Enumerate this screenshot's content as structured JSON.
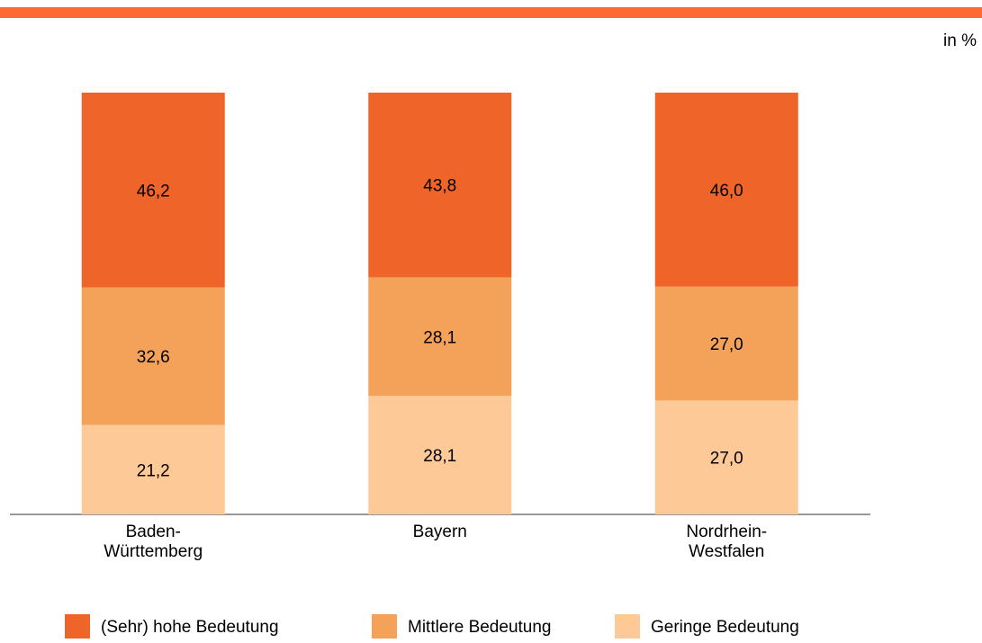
{
  "chart_data": {
    "type": "stacked_bar",
    "unit": "in %",
    "categories": [
      "Baden-\nWürttemberg",
      "Bayern",
      "Nordrhein-\nWestfalen"
    ],
    "series": [
      {
        "name": "(Sehr) hohe Bedeutung",
        "color": "#ef6429",
        "values": [
          46.2,
          43.8,
          46.0
        ],
        "value_labels": [
          "46,2",
          "43,8",
          "46,0"
        ]
      },
      {
        "name": "Mittlere Bedeutung",
        "color": "#f4a25a",
        "values": [
          32.6,
          28.1,
          27.0
        ],
        "value_labels": [
          "32,6",
          "28,1",
          "27,0"
        ]
      },
      {
        "name": "Geringe Bedeutung",
        "color": "#fdc997",
        "values": [
          21.2,
          28.1,
          27.0
        ],
        "value_labels": [
          "21,2",
          "28,1",
          "27,0"
        ]
      }
    ]
  }
}
